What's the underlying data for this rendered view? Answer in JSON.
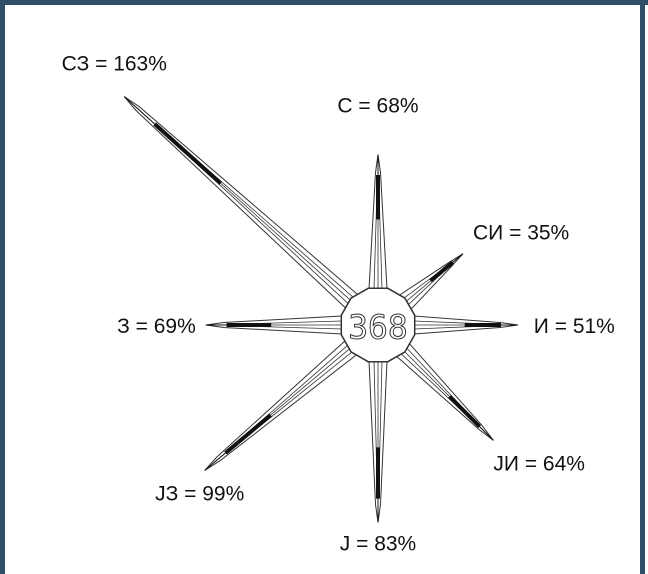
{
  "chart_data": {
    "type": "wind-rose",
    "center_value": "368",
    "directions": [
      {
        "key": "N",
        "label": "С = 68%",
        "value": 68
      },
      {
        "key": "NE",
        "label": "СИ = 35%",
        "value": 35
      },
      {
        "key": "E",
        "label": "И = 51%",
        "value": 51
      },
      {
        "key": "SE",
        "label": "ЈИ = 64%",
        "value": 64
      },
      {
        "key": "S",
        "label": "Ј = 83%",
        "value": 83
      },
      {
        "key": "SW",
        "label": "ЈЗ = 99%",
        "value": 99
      },
      {
        "key": "W",
        "label": "З = 69%",
        "value": 69
      },
      {
        "key": "NW",
        "label": "СЗ = 163%",
        "value": 163
      }
    ],
    "colors": {
      "ray_outline": "#333333",
      "ray_fill": "#ffffff",
      "ray_core": "#111111",
      "frame": "#2f4f6b"
    }
  }
}
